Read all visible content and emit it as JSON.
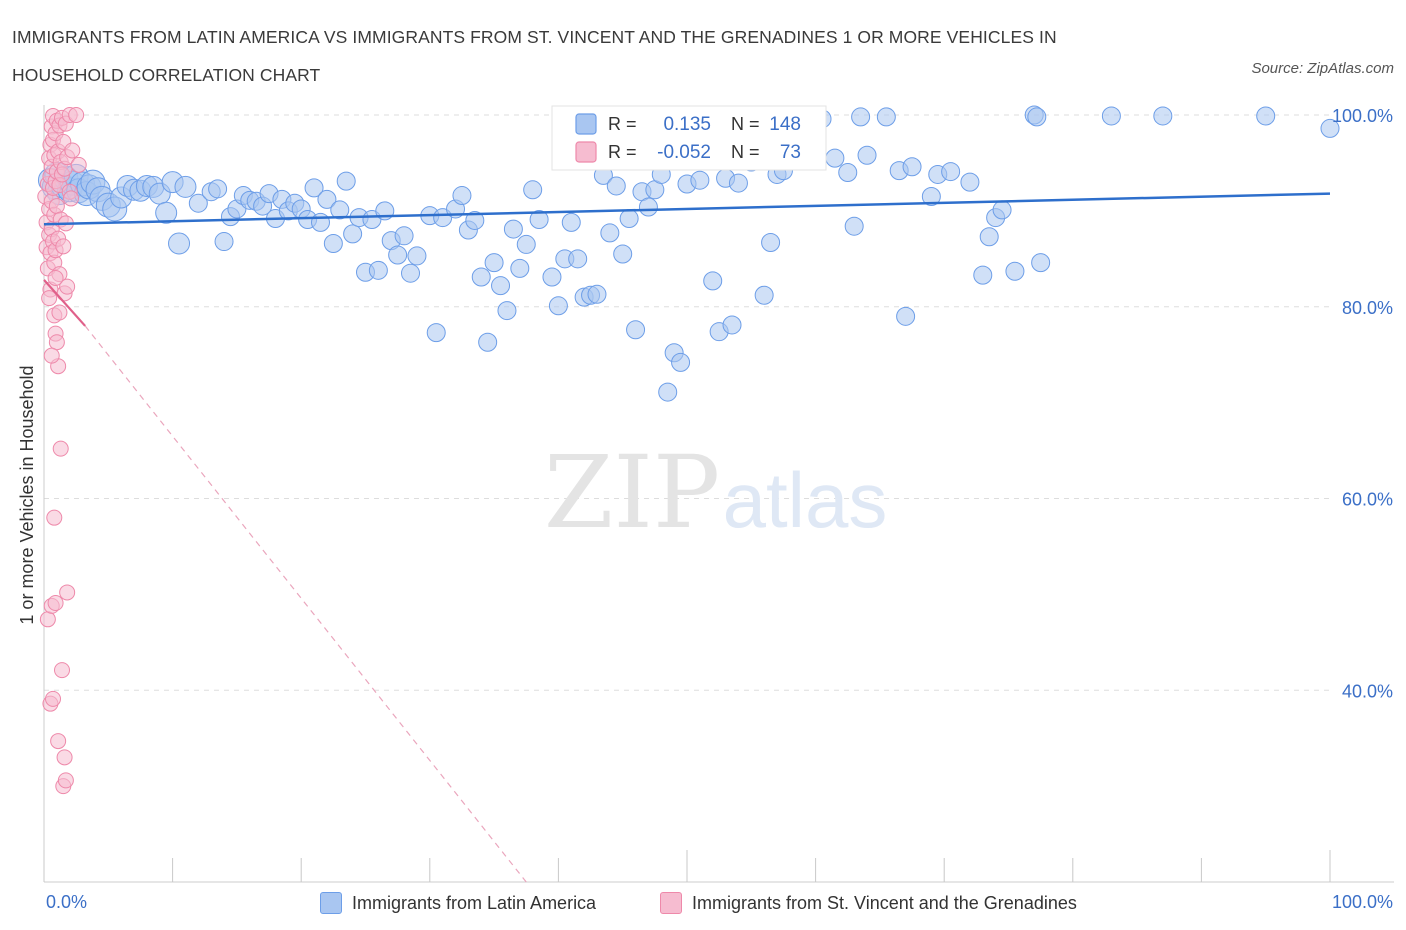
{
  "header": {
    "title": "IMMIGRANTS FROM LATIN AMERICA VS IMMIGRANTS FROM ST. VINCENT AND THE GRENADINES 1 OR MORE VEHICLES IN HOUSEHOLD CORRELATION CHART",
    "source": "Source: ZipAtlas.com"
  },
  "watermark": {
    "zip": "ZIP",
    "atlas": "atlas"
  },
  "stats": [
    {
      "r_label": "R =",
      "r_value": "0.135",
      "n_label": "N =",
      "n_value": "148",
      "color": "#6d9ee8"
    },
    {
      "r_label": "R =",
      "r_value": "-0.052",
      "n_label": "N =",
      "n_value": "73",
      "color": "#ee89aa"
    }
  ],
  "colors": {
    "blue": "#6d9ee8",
    "blue_fill": "#a9c6f1",
    "pink": "#ee89aa",
    "pink_fill": "#f6bcd0",
    "blue_line": "#2e6fcc",
    "pink_line": "#e0608a",
    "axis_text": "#3b6fc7"
  },
  "chart_data": {
    "type": "scatter",
    "title": "IMMIGRANTS FROM LATIN AMERICA VS IMMIGRANTS FROM ST. VINCENT AND THE GRENADINES 1 OR MORE VEHICLES IN HOUSEHOLD CORRELATION CHART",
    "xlabel": "",
    "ylabel": "1 or more Vehicles in Household",
    "xlim": [
      0,
      100
    ],
    "ylim": [
      20,
      100
    ],
    "x_tick_labels": [
      "0.0%",
      "100.0%"
    ],
    "y_ticks": [
      40,
      60,
      80,
      100
    ],
    "y_tick_labels": [
      "40.0%",
      "60.0%",
      "80.0%",
      "100.0%"
    ],
    "grid": true,
    "legend_position": "bottom",
    "series": [
      {
        "name": "Immigrants from Latin America",
        "R": 0.135,
        "N": 148,
        "trend": {
          "x": [
            0,
            100
          ],
          "y": [
            88.6,
            91.8
          ]
        },
        "points": [
          [
            0.5,
            93.2
          ],
          [
            0.8,
            92.5
          ],
          [
            1.0,
            93.8
          ],
          [
            1.2,
            91.9
          ],
          [
            1.5,
            92.6
          ],
          [
            1.7,
            93.4
          ],
          [
            2.0,
            92.2
          ],
          [
            2.2,
            92.9
          ],
          [
            2.5,
            93.6
          ],
          [
            2.7,
            92.1
          ],
          [
            3.0,
            92.8
          ],
          [
            3.3,
            91.8
          ],
          [
            3.5,
            92.5
          ],
          [
            3.8,
            93.0
          ],
          [
            4.2,
            92.2
          ],
          [
            4.5,
            91.3
          ],
          [
            5.0,
            90.6
          ],
          [
            5.5,
            90.2
          ],
          [
            6.0,
            91.4
          ],
          [
            6.5,
            92.6
          ],
          [
            7.0,
            92.2
          ],
          [
            7.5,
            92.1
          ],
          [
            8.0,
            92.6
          ],
          [
            8.5,
            92.5
          ],
          [
            9.0,
            91.8
          ],
          [
            9.5,
            89.8
          ],
          [
            10.0,
            93.0
          ],
          [
            10.5,
            86.6
          ],
          [
            11.0,
            92.5
          ],
          [
            12.0,
            90.8
          ],
          [
            13.0,
            92.0
          ],
          [
            13.5,
            92.3
          ],
          [
            14.0,
            86.8
          ],
          [
            14.5,
            89.4
          ],
          [
            15.0,
            90.2
          ],
          [
            15.5,
            91.6
          ],
          [
            16.0,
            91.1
          ],
          [
            16.5,
            91.0
          ],
          [
            17.0,
            90.5
          ],
          [
            17.5,
            91.8
          ],
          [
            18.0,
            89.2
          ],
          [
            18.5,
            91.2
          ],
          [
            19.0,
            90.0
          ],
          [
            19.5,
            90.8
          ],
          [
            20.0,
            90.2
          ],
          [
            20.5,
            89.1
          ],
          [
            21.0,
            92.4
          ],
          [
            21.5,
            88.8
          ],
          [
            22.0,
            91.2
          ],
          [
            22.5,
            86.6
          ],
          [
            23.0,
            90.1
          ],
          [
            23.5,
            93.1
          ],
          [
            24.0,
            87.6
          ],
          [
            24.5,
            89.3
          ],
          [
            25.0,
            83.6
          ],
          [
            25.5,
            89.1
          ],
          [
            26.0,
            83.8
          ],
          [
            26.5,
            90.0
          ],
          [
            27.0,
            86.9
          ],
          [
            27.5,
            85.4
          ],
          [
            28.0,
            87.4
          ],
          [
            28.5,
            83.5
          ],
          [
            29.0,
            85.3
          ],
          [
            30.0,
            89.5
          ],
          [
            30.5,
            77.3
          ],
          [
            31.0,
            89.3
          ],
          [
            32.0,
            90.2
          ],
          [
            32.5,
            91.6
          ],
          [
            33.0,
            88.0
          ],
          [
            33.5,
            89.0
          ],
          [
            34.0,
            83.1
          ],
          [
            34.5,
            76.3
          ],
          [
            35.0,
            84.6
          ],
          [
            35.5,
            82.2
          ],
          [
            36.0,
            79.6
          ],
          [
            36.5,
            88.1
          ],
          [
            37.0,
            84.0
          ],
          [
            37.5,
            86.5
          ],
          [
            38.0,
            92.2
          ],
          [
            38.5,
            89.1
          ],
          [
            39.5,
            83.1
          ],
          [
            40.0,
            80.1
          ],
          [
            40.5,
            85.0
          ],
          [
            41.0,
            88.8
          ],
          [
            41.5,
            85.0
          ],
          [
            42.0,
            81.0
          ],
          [
            42.5,
            81.2
          ],
          [
            43.0,
            81.3
          ],
          [
            43.5,
            93.7
          ],
          [
            44.0,
            87.7
          ],
          [
            44.5,
            92.6
          ],
          [
            45.0,
            85.5
          ],
          [
            45.5,
            89.2
          ],
          [
            46.0,
            77.6
          ],
          [
            46.5,
            92.0
          ],
          [
            47.0,
            90.4
          ],
          [
            47.5,
            92.2
          ],
          [
            48.0,
            93.8
          ],
          [
            49.0,
            75.2
          ],
          [
            49.5,
            74.2
          ],
          [
            48.5,
            71.1
          ],
          [
            50.0,
            92.8
          ],
          [
            50.5,
            95.3
          ],
          [
            51.0,
            93.2
          ],
          [
            52.0,
            82.7
          ],
          [
            52.5,
            77.4
          ],
          [
            53.0,
            93.4
          ],
          [
            53.5,
            78.1
          ],
          [
            54.0,
            92.9
          ],
          [
            55.0,
            95.1
          ],
          [
            55.5,
            98.0
          ],
          [
            56.0,
            81.2
          ],
          [
            56.5,
            86.7
          ],
          [
            57.0,
            93.8
          ],
          [
            57.5,
            94.2
          ],
          [
            58.0,
            96.3
          ],
          [
            58.8,
            95.5
          ],
          [
            59.5,
            97.1
          ],
          [
            60.0,
            99.0
          ],
          [
            60.5,
            99.6
          ],
          [
            61.5,
            95.5
          ],
          [
            62.5,
            94.0
          ],
          [
            63.0,
            88.4
          ],
          [
            63.5,
            99.8
          ],
          [
            64.0,
            95.8
          ],
          [
            65.5,
            99.8
          ],
          [
            66.5,
            94.2
          ],
          [
            67.0,
            79.0
          ],
          [
            67.5,
            94.6
          ],
          [
            69.0,
            91.5
          ],
          [
            69.5,
            93.8
          ],
          [
            70.5,
            94.1
          ],
          [
            72.0,
            93.0
          ],
          [
            73.0,
            83.3
          ],
          [
            73.5,
            87.3
          ],
          [
            74.0,
            89.3
          ],
          [
            74.5,
            90.1
          ],
          [
            75.5,
            83.7
          ],
          [
            77.5,
            84.6
          ],
          [
            77.0,
            100.0
          ],
          [
            77.2,
            99.8
          ],
          [
            83.0,
            99.9
          ],
          [
            87.0,
            99.9
          ],
          [
            95.0,
            99.9
          ],
          [
            100.0,
            98.6
          ]
        ]
      },
      {
        "name": "Immigrants from St. Vincent and the Grenadines",
        "R": -0.052,
        "N": 73,
        "trend": {
          "x": [
            0,
            3.2
          ],
          "y": [
            82.8,
            78.0
          ]
        },
        "trend_extended": {
          "x": [
            3.2,
            37.5
          ],
          "y": [
            78.0,
            20.0
          ]
        },
        "points": [
          [
            0.1,
            91.5
          ],
          [
            0.2,
            88.8
          ],
          [
            0.2,
            86.2
          ],
          [
            0.3,
            92.8
          ],
          [
            0.3,
            84.0
          ],
          [
            0.4,
            95.5
          ],
          [
            0.4,
            90.2
          ],
          [
            0.4,
            87.5
          ],
          [
            0.5,
            96.9
          ],
          [
            0.5,
            93.6
          ],
          [
            0.5,
            85.6
          ],
          [
            0.5,
            81.8
          ],
          [
            0.6,
            98.8
          ],
          [
            0.6,
            94.6
          ],
          [
            0.6,
            91.0
          ],
          [
            0.6,
            88.1
          ],
          [
            0.7,
            99.9
          ],
          [
            0.7,
            97.4
          ],
          [
            0.7,
            92.4
          ],
          [
            0.7,
            86.8
          ],
          [
            0.8,
            95.8
          ],
          [
            0.8,
            89.6
          ],
          [
            0.8,
            84.6
          ],
          [
            0.8,
            79.1
          ],
          [
            0.9,
            98.1
          ],
          [
            0.9,
            93.1
          ],
          [
            0.9,
            85.9
          ],
          [
            0.9,
            77.2
          ],
          [
            1.0,
            99.4
          ],
          [
            1.0,
            94.1
          ],
          [
            1.0,
            90.5
          ],
          [
            1.0,
            76.3
          ],
          [
            1.1,
            96.2
          ],
          [
            1.1,
            87.1
          ],
          [
            1.1,
            73.8
          ],
          [
            1.2,
            98.9
          ],
          [
            1.2,
            92.7
          ],
          [
            1.2,
            83.4
          ],
          [
            1.3,
            95.1
          ],
          [
            1.3,
            89.1
          ],
          [
            1.4,
            99.7
          ],
          [
            1.4,
            93.8
          ],
          [
            1.5,
            97.2
          ],
          [
            1.5,
            86.3
          ],
          [
            1.6,
            94.4
          ],
          [
            1.6,
            81.4
          ],
          [
            1.7,
            99.1
          ],
          [
            1.7,
            88.7
          ],
          [
            1.8,
            95.6
          ],
          [
            1.8,
            82.1
          ],
          [
            2.0,
            100.0
          ],
          [
            2.0,
            92.0
          ],
          [
            2.2,
            96.3
          ],
          [
            2.5,
            100.0
          ],
          [
            2.7,
            94.8
          ],
          [
            0.3,
            47.4
          ],
          [
            0.5,
            38.6
          ],
          [
            0.6,
            48.8
          ],
          [
            0.7,
            39.1
          ],
          [
            0.8,
            58.0
          ],
          [
            0.9,
            49.1
          ],
          [
            1.1,
            34.7
          ],
          [
            1.3,
            65.2
          ],
          [
            1.4,
            42.1
          ],
          [
            1.5,
            30.0
          ],
          [
            1.6,
            33.0
          ],
          [
            1.7,
            30.6
          ],
          [
            1.8,
            50.2
          ],
          [
            1.2,
            79.4
          ],
          [
            0.4,
            80.9
          ],
          [
            0.6,
            74.9
          ],
          [
            2.1,
            91.3
          ],
          [
            0.9,
            83.0
          ]
        ]
      }
    ]
  },
  "legend": [
    {
      "label": "Immigrants from Latin America"
    },
    {
      "label": "Immigrants from St. Vincent and the Grenadines"
    }
  ]
}
